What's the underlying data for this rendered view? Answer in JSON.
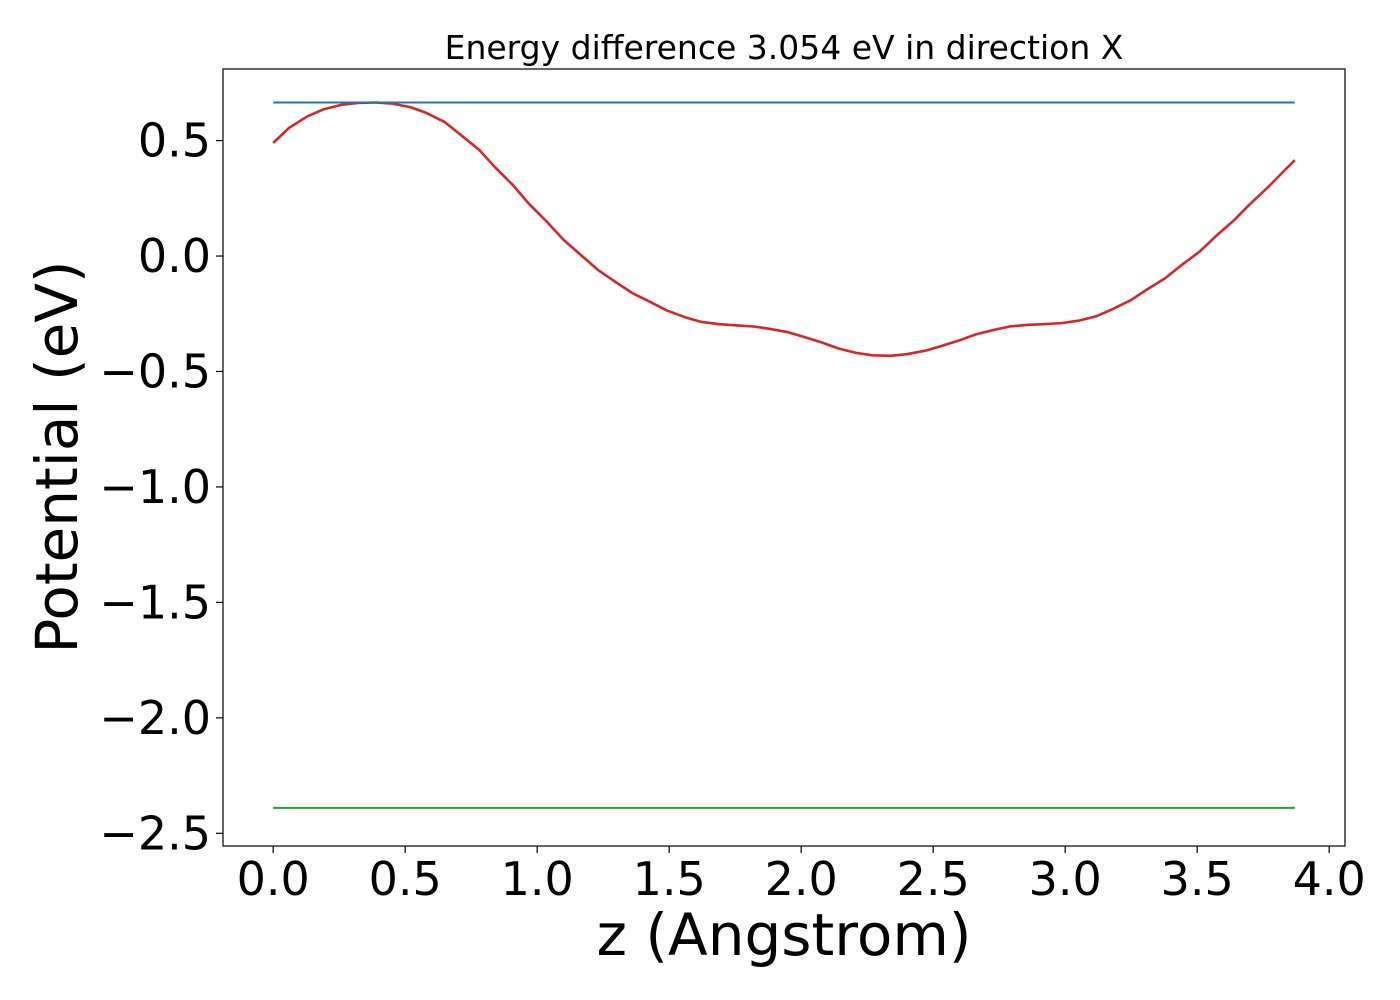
{
  "chart_data": {
    "type": "line",
    "title": "Energy difference 3.054 eV in direction X",
    "xlabel": "z (Angstrom)",
    "ylabel": "Potential (eV)",
    "xlim": [
      -0.19,
      4.06
    ],
    "ylim": [
      -2.555,
      0.81
    ],
    "xticks": [
      0.0,
      0.5,
      1.0,
      1.5,
      2.0,
      2.5,
      3.0,
      3.5,
      4.0
    ],
    "xtick_labels": [
      "0.0",
      "0.5",
      "1.0",
      "1.5",
      "2.0",
      "2.5",
      "3.0",
      "3.5",
      "4.0"
    ],
    "yticks": [
      0.5,
      0.0,
      -0.5,
      -1.0,
      -1.5,
      -2.0,
      -2.5
    ],
    "ytick_labels": [
      "0.5",
      "0.0",
      "−0.5",
      "−1.0",
      "−1.5",
      "−2.0",
      "−2.5"
    ],
    "grid": false,
    "series": [
      {
        "color": "#d62728",
        "x": [
          0.0,
          0.06,
          0.13,
          0.19,
          0.26,
          0.32,
          0.39,
          0.45,
          0.52,
          0.58,
          0.65,
          0.71,
          0.78,
          0.84,
          0.91,
          0.97,
          1.04,
          1.1,
          1.17,
          1.23,
          1.3,
          1.36,
          1.43,
          1.49,
          1.56,
          1.62,
          1.69,
          1.75,
          1.82,
          1.88,
          1.95,
          2.01,
          2.08,
          2.14,
          2.21,
          2.27,
          2.34,
          2.4,
          2.47,
          2.53,
          2.6,
          2.66,
          2.73,
          2.79,
          2.86,
          2.92,
          2.99,
          3.05,
          3.12,
          3.18,
          3.25,
          3.31,
          3.38,
          3.44,
          3.51,
          3.57,
          3.64,
          3.7,
          3.77,
          3.83,
          3.87
        ],
        "y": [
          0.49,
          0.555,
          0.605,
          0.635,
          0.655,
          0.663,
          0.665,
          0.66,
          0.645,
          0.62,
          0.58,
          0.525,
          0.46,
          0.385,
          0.305,
          0.225,
          0.145,
          0.07,
          0.0,
          -0.06,
          -0.115,
          -0.16,
          -0.2,
          -0.235,
          -0.265,
          -0.285,
          -0.295,
          -0.3,
          -0.305,
          -0.315,
          -0.33,
          -0.35,
          -0.375,
          -0.4,
          -0.42,
          -0.43,
          -0.432,
          -0.425,
          -0.41,
          -0.39,
          -0.365,
          -0.34,
          -0.32,
          -0.305,
          -0.298,
          -0.295,
          -0.29,
          -0.28,
          -0.26,
          -0.23,
          -0.19,
          -0.145,
          -0.095,
          -0.04,
          0.02,
          0.085,
          0.155,
          0.225,
          0.3,
          0.37,
          0.415
        ]
      },
      {
        "color": "#1f77b4",
        "x": [
          0.0,
          3.87
        ],
        "y": [
          0.665,
          0.665
        ]
      },
      {
        "color": "#2ca02c",
        "x": [
          0.0,
          3.87
        ],
        "y": [
          -2.39,
          -2.39
        ]
      }
    ]
  }
}
